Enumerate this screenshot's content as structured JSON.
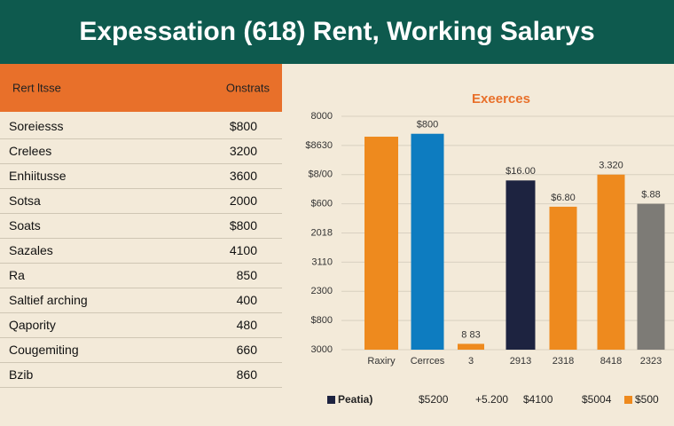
{
  "header": {
    "title": "Expessation (618) Rent, Working Salarys"
  },
  "table": {
    "header": [
      "Rert ltsse",
      "Onstrats"
    ],
    "rows": [
      [
        "Soreiesss",
        "$800"
      ],
      [
        "Crelees",
        "3200"
      ],
      [
        "Enhiitusse",
        "3600"
      ],
      [
        "Sotsa",
        "2000"
      ],
      [
        "Soats",
        "$800"
      ],
      [
        "Sazales",
        "4100"
      ],
      [
        "Ra",
        "850"
      ],
      [
        "Saltief arching",
        "400"
      ],
      [
        "Qapority",
        "480"
      ],
      [
        "Cougemiting",
        "660"
      ],
      [
        "Bzib",
        "860"
      ]
    ]
  },
  "chart_data": {
    "type": "bar",
    "title": "Exeerces",
    "categories": [
      "Raxiry",
      "Cerrces",
      "3",
      "2913",
      "2318",
      "8418",
      "2323"
    ],
    "values": [
      7.3,
      7.4,
      0.2,
      5.8,
      4.9,
      6.0,
      5.0
    ],
    "value_labels": [
      null,
      "$800",
      "8 83",
      "$16.00",
      "$6.80",
      "3.320",
      "$.88"
    ],
    "colors": [
      "#ee8a1e",
      "#0d7cc0",
      "#ee8a1e",
      "#1d2340",
      "#ee8a1e",
      "#ee8a1e",
      "#7d7b76"
    ],
    "ylim": [
      0,
      8
    ],
    "yticks": [
      {
        "value": 0,
        "label": "3000"
      },
      {
        "value": 1,
        "label": "$800"
      },
      {
        "value": 2,
        "label": "2300"
      },
      {
        "value": 3,
        "label": "3110"
      },
      {
        "value": 4,
        "label": "2018"
      },
      {
        "value": 5,
        "label": "$600"
      },
      {
        "value": 6,
        "label": "$8/00"
      },
      {
        "value": 7,
        "label": "$8630"
      },
      {
        "value": 8,
        "label": "8000"
      }
    ],
    "grid": true,
    "legend": [
      {
        "label": "Peatia)",
        "color": "#1d2340"
      },
      {
        "label": "$5200"
      },
      {
        "label": "+5.200"
      },
      {
        "label": "$4100"
      },
      {
        "label": "$5004"
      },
      {
        "label": "$500",
        "color": "#ee8a1e"
      }
    ]
  }
}
